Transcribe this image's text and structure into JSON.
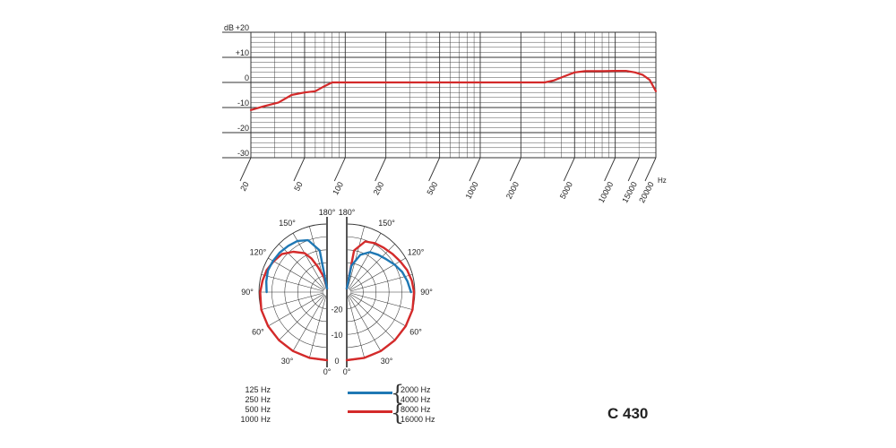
{
  "chart_data": [
    {
      "type": "line",
      "y_unit_label": "dB",
      "x_unit_label": "Hz",
      "x_scale": "log",
      "xlim": [
        20,
        20000
      ],
      "ylim": [
        -30,
        20
      ],
      "y_tick_labels": [
        "+20",
        "+10",
        "0",
        "-10",
        "-20",
        "-30"
      ],
      "y_ticks": [
        20,
        10,
        0,
        -10,
        -20,
        -30
      ],
      "x_tick_labels": [
        "20",
        "50",
        "100",
        "200",
        "500",
        "1000",
        "2000",
        "5000",
        "10000",
        "15000",
        "20000"
      ],
      "x_ticks": [
        20,
        50,
        100,
        200,
        500,
        1000,
        2000,
        5000,
        10000,
        15000,
        20000
      ],
      "grid": true,
      "series": [
        {
          "color": "#d42a2a",
          "x": [
            20,
            25,
            32,
            40,
            50,
            60,
            70,
            80,
            90,
            100,
            150,
            200,
            500,
            1000,
            2000,
            3000,
            3500,
            4000,
            5000,
            6000,
            8000,
            10000,
            12000,
            14000,
            16000,
            18000,
            20000
          ],
          "y": [
            -11,
            -9.5,
            -8,
            -5,
            -4,
            -3.5,
            -1.5,
            0,
            0,
            0,
            0,
            0,
            0,
            0,
            0,
            0,
            0.8,
            2,
            4,
            4.5,
            4.5,
            4.6,
            4.6,
            4,
            3,
            1,
            -3.5
          ]
        }
      ]
    },
    {
      "type": "polar",
      "angle_labels": [
        "180°",
        "150°",
        "120°",
        "90°",
        "60°",
        "30°",
        "0°"
      ],
      "angles": [
        180,
        150,
        120,
        90,
        60,
        30,
        0
      ],
      "radial_labels": [
        "-20",
        "-10",
        "0"
      ],
      "radial_values": [
        -20,
        -10,
        0
      ],
      "r_range_db": [
        -25,
        0
      ],
      "series": [
        {
          "side": "left",
          "color": "#d42a2a",
          "angles": [
            0,
            15,
            30,
            45,
            60,
            75,
            90,
            100,
            110,
            120,
            130,
            140,
            150,
            155,
            160,
            170,
            180
          ],
          "db": [
            0,
            0,
            0,
            0,
            0,
            0,
            -0.5,
            -1,
            -1.5,
            -2.5,
            -3.5,
            -6,
            -9,
            -12,
            -16,
            -21,
            -25
          ]
        },
        {
          "side": "left",
          "color": "#1f78b4",
          "angles": [
            90,
            100,
            110,
            120,
            130,
            140,
            150,
            160,
            170,
            180
          ],
          "db": [
            -3,
            -2.5,
            -2,
            -2.2,
            -2.5,
            -3,
            -3.5,
            -5,
            -10,
            -25
          ]
        },
        {
          "side": "right",
          "color": "#d42a2a",
          "angles": [
            0,
            15,
            30,
            45,
            60,
            75,
            90,
            100,
            110,
            120,
            130,
            140,
            150,
            160,
            170,
            180
          ],
          "db": [
            0,
            0,
            0,
            0,
            0,
            0,
            -0.3,
            -0.8,
            -1.5,
            -2.5,
            -3.3,
            -4,
            -4.5,
            -5.5,
            -10,
            -25
          ]
        },
        {
          "side": "right",
          "color": "#1f78b4",
          "angles": [
            90,
            100,
            110,
            120,
            130,
            140,
            150,
            160,
            170,
            180
          ],
          "db": [
            -1.5,
            -2.5,
            -3.5,
            -5,
            -6.5,
            -7.5,
            -8.5,
            -11,
            -16,
            -25
          ]
        }
      ]
    }
  ],
  "legend": {
    "left_freqs": [
      "125 Hz",
      "250 Hz",
      "500 Hz",
      "1000 Hz"
    ],
    "blue_freqs": [
      "2000 Hz",
      "4000 Hz"
    ],
    "red_freqs": [
      "8000 Hz",
      "16000 Hz"
    ],
    "blue_color": "#1f78b4",
    "red_color": "#d42a2a"
  },
  "model": "C 430"
}
